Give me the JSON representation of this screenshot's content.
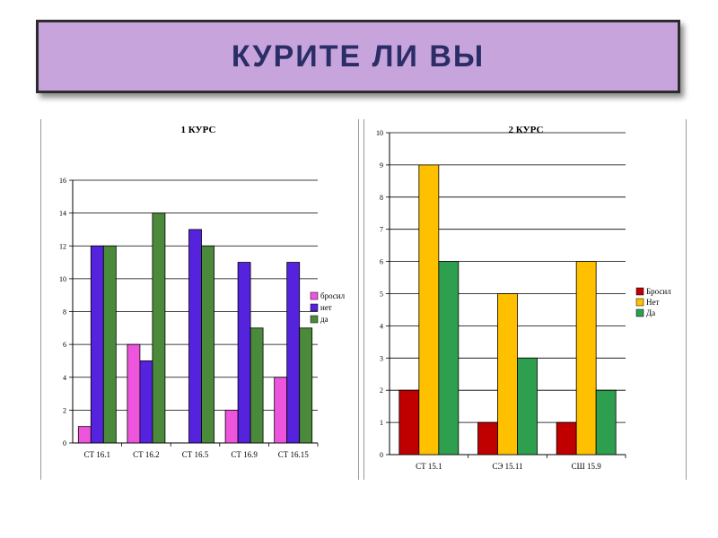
{
  "header": {
    "title": "КУРИТЕ ЛИ ВЫ"
  },
  "chart_data": [
    {
      "type": "bar",
      "title": "1 КУРС",
      "categories": [
        "СТ 16.1",
        "СТ 16.2",
        "СТ 16.5",
        "СТ 16.9",
        "СТ 16.15"
      ],
      "ylim": [
        0,
        16
      ],
      "yticks": [
        0,
        2,
        4,
        6,
        8,
        10,
        12,
        14,
        16
      ],
      "ytick_labels": [
        "0",
        "2",
        "4",
        "6",
        "8",
        "10",
        "12",
        "14",
        "16"
      ],
      "grid": true,
      "legend_position": "right",
      "series": [
        {
          "name": "бросил",
          "color": "#ee55dd",
          "values": [
            1,
            6,
            0,
            2,
            4
          ]
        },
        {
          "name": "нет",
          "color": "#5522dd",
          "values": [
            12,
            5,
            13,
            11,
            11
          ]
        },
        {
          "name": "да",
          "color": "#4a8a3a",
          "values": [
            12,
            14,
            12,
            7,
            7
          ]
        }
      ]
    },
    {
      "type": "bar",
      "title": "2 КУРС",
      "categories": [
        "СТ 15.1",
        "СЭ 15.11",
        "СШ 15.9"
      ],
      "ylim": [
        0,
        10
      ],
      "yticks": [
        0,
        1,
        2,
        3,
        4,
        5,
        6,
        7,
        8,
        9,
        10
      ],
      "ytick_labels": [
        "0",
        "1",
        "2",
        "3",
        "4",
        "5",
        "6",
        "7",
        "8",
        "9",
        "10"
      ],
      "grid": true,
      "legend_position": "right",
      "series": [
        {
          "name": "Бросил",
          "color": "#c00000",
          "values": [
            2,
            1,
            1
          ]
        },
        {
          "name": "Нет",
          "color": "#ffc000",
          "values": [
            9,
            5,
            6
          ]
        },
        {
          "name": "Да",
          "color": "#2e9e4f",
          "values": [
            6,
            3,
            2
          ]
        }
      ]
    }
  ]
}
